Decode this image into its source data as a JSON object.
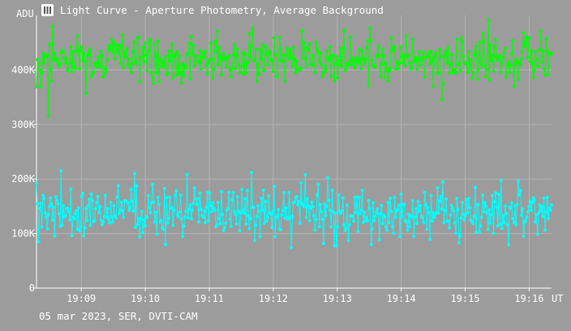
{
  "title": "Light Curve - Aperture Photometry, Average Background",
  "footer": "05 mar 2023, SER, DVTI-CAM",
  "icon": "light-curve-icon",
  "colors": {
    "background": "#9c9c9c",
    "grid": "#b4b4b4",
    "axis": "#ffffff",
    "series_green": "#00ff00",
    "series_cyan": "#00ffff"
  },
  "chart_data": {
    "type": "line",
    "ylabel": "ADU",
    "xunit": "UT",
    "x_range": [
      "19:08:18",
      "19:16:21"
    ],
    "ylim": [
      0,
      500000
    ],
    "y_ticks": [
      {
        "value": 0,
        "label": "0"
      },
      {
        "value": 100000,
        "label": "100K"
      },
      {
        "value": 200000,
        "label": "200K"
      },
      {
        "value": 300000,
        "label": "300K"
      },
      {
        "value": 400000,
        "label": "400K"
      }
    ],
    "x_ticks": [
      {
        "value": "19:09",
        "label": "19:09"
      },
      {
        "value": "19:10",
        "label": "19:10"
      },
      {
        "value": "19:11",
        "label": "19:11"
      },
      {
        "value": "19:12",
        "label": "19:12"
      },
      {
        "value": "19:13",
        "label": "19:13"
      },
      {
        "value": "19:14",
        "label": "19:14"
      },
      {
        "value": "19:15",
        "label": "19:15"
      },
      {
        "value": "19:16",
        "label": "19:16"
      }
    ],
    "grid": true,
    "points_per_series": 480,
    "series": [
      {
        "color": "#00ff00",
        "mean": 418000,
        "spread": 22000,
        "extremes": [
          {
            "x": "19:08:29",
            "y": 316000
          },
          {
            "x": "19:08:33",
            "y": 480000
          },
          {
            "x": "19:14:38",
            "y": 345000
          },
          {
            "x": "19:15:22",
            "y": 492000
          }
        ]
      },
      {
        "color": "#00ffff",
        "mean": 140000,
        "spread": 25000,
        "extremes": [
          {
            "x": "19:08:20",
            "y": 85000
          },
          {
            "x": "19:08:41",
            "y": 215000
          },
          {
            "x": "19:09:50",
            "y": 210000
          },
          {
            "x": "19:10:19",
            "y": 80000
          },
          {
            "x": "19:12:51",
            "y": 202000
          },
          {
            "x": "19:13:32",
            "y": 80000
          }
        ]
      }
    ]
  }
}
